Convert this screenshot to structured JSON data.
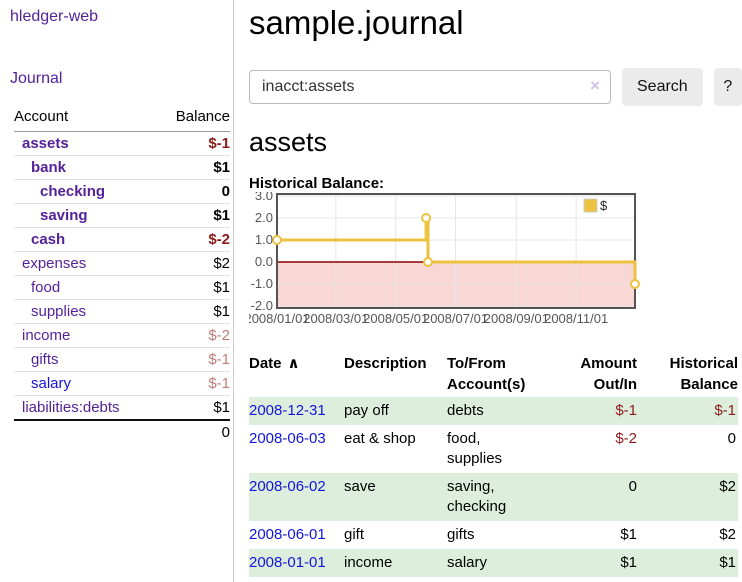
{
  "colors": {
    "accent_purple": "#552299",
    "link_blue": "#1414dd",
    "negative": "#8e1b1b",
    "muted_negative": "#bf7b7b",
    "row_stripe_green": "#ddeedd",
    "chart_line": "#edc240",
    "chart_negative_fill": "#f9d7d5",
    "chart_zero_line": "#8b0000",
    "chart_grid": "#e6e6e6",
    "chart_border": "#545454"
  },
  "sidebar": {
    "brand": "hledger-web",
    "nav_journal": "Journal",
    "accounts": {
      "header_account": "Account",
      "header_balance": "Balance",
      "rows": [
        {
          "name": "assets",
          "indent": 1,
          "emph": true,
          "balance": "$-1",
          "balance_style": "neg"
        },
        {
          "name": "bank",
          "indent": 2,
          "emph": true,
          "balance": "$1",
          "balance_style": ""
        },
        {
          "name": "checking",
          "indent": 3,
          "emph": true,
          "balance": "0",
          "balance_style": ""
        },
        {
          "name": "saving",
          "indent": 3,
          "emph": true,
          "balance": "$1",
          "balance_style": ""
        },
        {
          "name": "cash",
          "indent": 2,
          "emph": true,
          "balance": "$-2",
          "balance_style": "neg"
        },
        {
          "name": "expenses",
          "indent": 1,
          "emph": false,
          "balance": "$2",
          "balance_style": ""
        },
        {
          "name": "food",
          "indent": 2,
          "emph": false,
          "balance": "$1",
          "balance_style": ""
        },
        {
          "name": "supplies",
          "indent": 2,
          "emph": false,
          "balance": "$1",
          "balance_style": ""
        },
        {
          "name": "income",
          "indent": 1,
          "emph": false,
          "balance": "$-2",
          "balance_style": "muted"
        },
        {
          "name": "gifts",
          "indent": 2,
          "emph": false,
          "balance": "$-1",
          "balance_style": "muted"
        },
        {
          "name": "salary",
          "indent": 2,
          "emph": false,
          "balance": "$-1",
          "balance_style": "muted",
          "unvisited": true
        },
        {
          "name": "liabilities:debts",
          "indent": 1,
          "emph": false,
          "balance": "$1",
          "balance_style": ""
        }
      ],
      "total": "0"
    }
  },
  "main": {
    "title": "sample.journal",
    "search": {
      "value": "inacct:assets",
      "clear_icon": "×",
      "search_button": "Search",
      "help_button": "?"
    },
    "account_heading": "assets",
    "section_label": "Historical Balance:"
  },
  "chart_data": {
    "type": "line",
    "title": "Historical Balance",
    "step": true,
    "series": [
      {
        "name": "$",
        "color": "#edc240",
        "points": [
          {
            "date": "2008-01-01",
            "value": 1.0
          },
          {
            "date": "2008-06-01",
            "value": 2.0
          },
          {
            "date": "2008-06-03",
            "value": 0.0
          },
          {
            "date": "2008-12-31",
            "value": -1.0
          }
        ]
      }
    ],
    "ylim": [
      -2.0,
      3.0
    ],
    "yticks": [
      3.0,
      2.0,
      1.0,
      0.0,
      -1.0,
      -2.0
    ],
    "xticks": [
      "2008/01/01",
      "2008/03/01",
      "2008/05/01",
      "2008/07/01",
      "2008/09/01",
      "2008/11/01"
    ],
    "xrange": [
      "2008-01-01",
      "2008-12-31"
    ],
    "grid": true,
    "legend_position": "top-right",
    "negative_region_shaded": true
  },
  "register": {
    "headers": {
      "date": "Date",
      "date_sort_icon": "∧",
      "description": "Description",
      "accounts": "To/From Account(s)",
      "amount": "Amount Out/In",
      "balance": "Historical Balance"
    },
    "rows": [
      {
        "date": "2008-12-31",
        "description": "pay off",
        "accounts": "debts",
        "amount": "$-1",
        "amount_style": "neg",
        "balance": "$-1",
        "balance_style": "neg"
      },
      {
        "date": "2008-06-03",
        "description": "eat & shop",
        "accounts": "food, supplies",
        "amount": "$-2",
        "amount_style": "neg",
        "balance": "0",
        "balance_style": ""
      },
      {
        "date": "2008-06-02",
        "description": "save",
        "accounts": "saving, checking",
        "amount": "0",
        "amount_style": "",
        "balance": "$2",
        "balance_style": ""
      },
      {
        "date": "2008-06-01",
        "description": "gift",
        "accounts": "gifts",
        "amount": "$1",
        "amount_style": "",
        "balance": "$2",
        "balance_style": ""
      },
      {
        "date": "2008-01-01",
        "description": "income",
        "accounts": "salary",
        "amount": "$1",
        "amount_style": "",
        "balance": "$1",
        "balance_style": ""
      }
    ]
  }
}
